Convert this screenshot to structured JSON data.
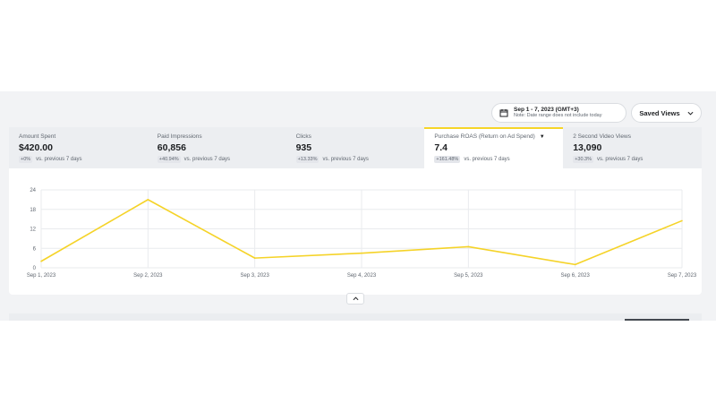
{
  "header": {
    "date_range": "Sep 1 - 7, 2023 (GMT+3)",
    "date_note": "Note: Date range does not include today",
    "saved_views": "Saved Views"
  },
  "tabs": [
    {
      "label": "Amount Spent",
      "value": "$420.00",
      "change": "+0%",
      "comparison": "vs. previous 7 days",
      "active": false
    },
    {
      "label": "Paid Impressions",
      "value": "60,856",
      "change": "+40.94%",
      "comparison": "vs. previous 7 days",
      "active": false
    },
    {
      "label": "Clicks",
      "value": "935",
      "change": "+13.33%",
      "comparison": "vs. previous 7 days",
      "active": false
    },
    {
      "label": "Purchase ROAS (Return on Ad Spend)",
      "value": "7.4",
      "change": "+161.48%",
      "comparison": "vs. previous 7 days",
      "active": true
    },
    {
      "label": "2 Second Video Views",
      "value": "13,090",
      "change": "+30.3%",
      "comparison": "vs. previous 7 days",
      "active": false
    }
  ],
  "colors": {
    "accent": "#f6d528",
    "line": "#f5d328",
    "grid": "#e9ebee"
  },
  "icons": {
    "calendar": "calendar-icon",
    "saved_views_chevron": "chevron-down-icon",
    "metric_dropdown": "caret-down-icon",
    "collapse": "chevron-up-icon"
  },
  "chart_data": {
    "type": "line",
    "x": [
      "Sep 1, 2023",
      "Sep 2, 2023",
      "Sep 3, 2023",
      "Sep 4, 2023",
      "Sep 5, 2023",
      "Sep 6, 2023",
      "Sep 7, 2023"
    ],
    "series": [
      {
        "values": [
          2,
          21,
          3,
          4.5,
          6.5,
          1,
          14.5
        ]
      }
    ],
    "yticks": [
      0,
      6,
      12,
      18,
      24
    ],
    "ylim": [
      0,
      24
    ],
    "grid": true
  }
}
